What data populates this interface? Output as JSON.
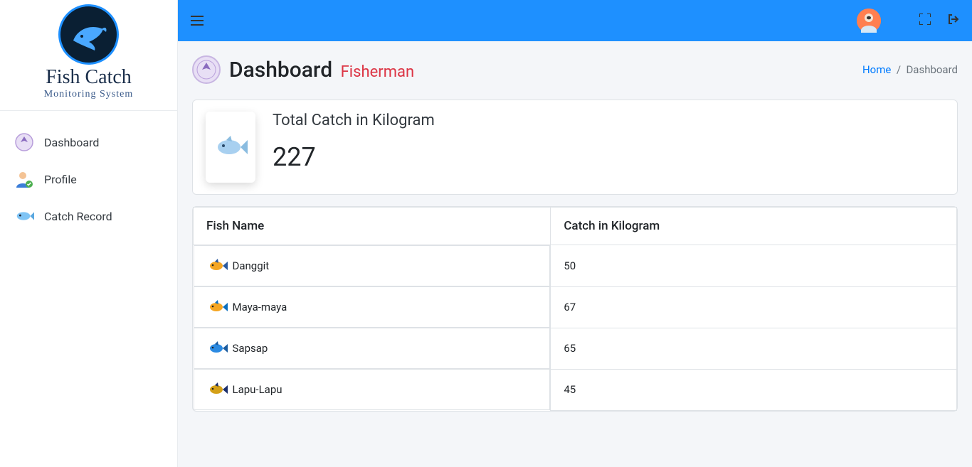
{
  "brand": {
    "title": "Fish Catch",
    "subtitle": "Monitoring System"
  },
  "sidebar": {
    "items": [
      {
        "label": "Dashboard",
        "icon": "badge"
      },
      {
        "label": "Profile",
        "icon": "person"
      },
      {
        "label": "Catch Record",
        "icon": "fish"
      }
    ]
  },
  "page": {
    "title": "Dashboard",
    "subtitle": "Fisherman"
  },
  "breadcrumb": {
    "home": "Home",
    "sep": "/",
    "current": "Dashboard"
  },
  "summary": {
    "label": "Total Catch in Kilogram",
    "value": "227"
  },
  "table": {
    "columns": [
      "Fish Name",
      "Catch in Kilogram"
    ],
    "rows": [
      {
        "name": "Danggit",
        "kg": "50",
        "color": "#f5a623",
        "fin": "#2b5aa0"
      },
      {
        "name": "Maya-maya",
        "kg": "67",
        "color": "#f5a623",
        "fin": "#0a6fbf"
      },
      {
        "name": "Sapsap",
        "kg": "65",
        "color": "#2b8ae2",
        "fin": "#1a5ca0"
      },
      {
        "name": "Lapu-Lapu",
        "kg": "45",
        "color": "#d4a017",
        "fin": "#1a2e6b"
      }
    ]
  },
  "colors": {
    "topbar": "#1e90ff",
    "accent": "#dc3545",
    "link": "#007bff",
    "avatar_bg": "#ff7f50"
  }
}
